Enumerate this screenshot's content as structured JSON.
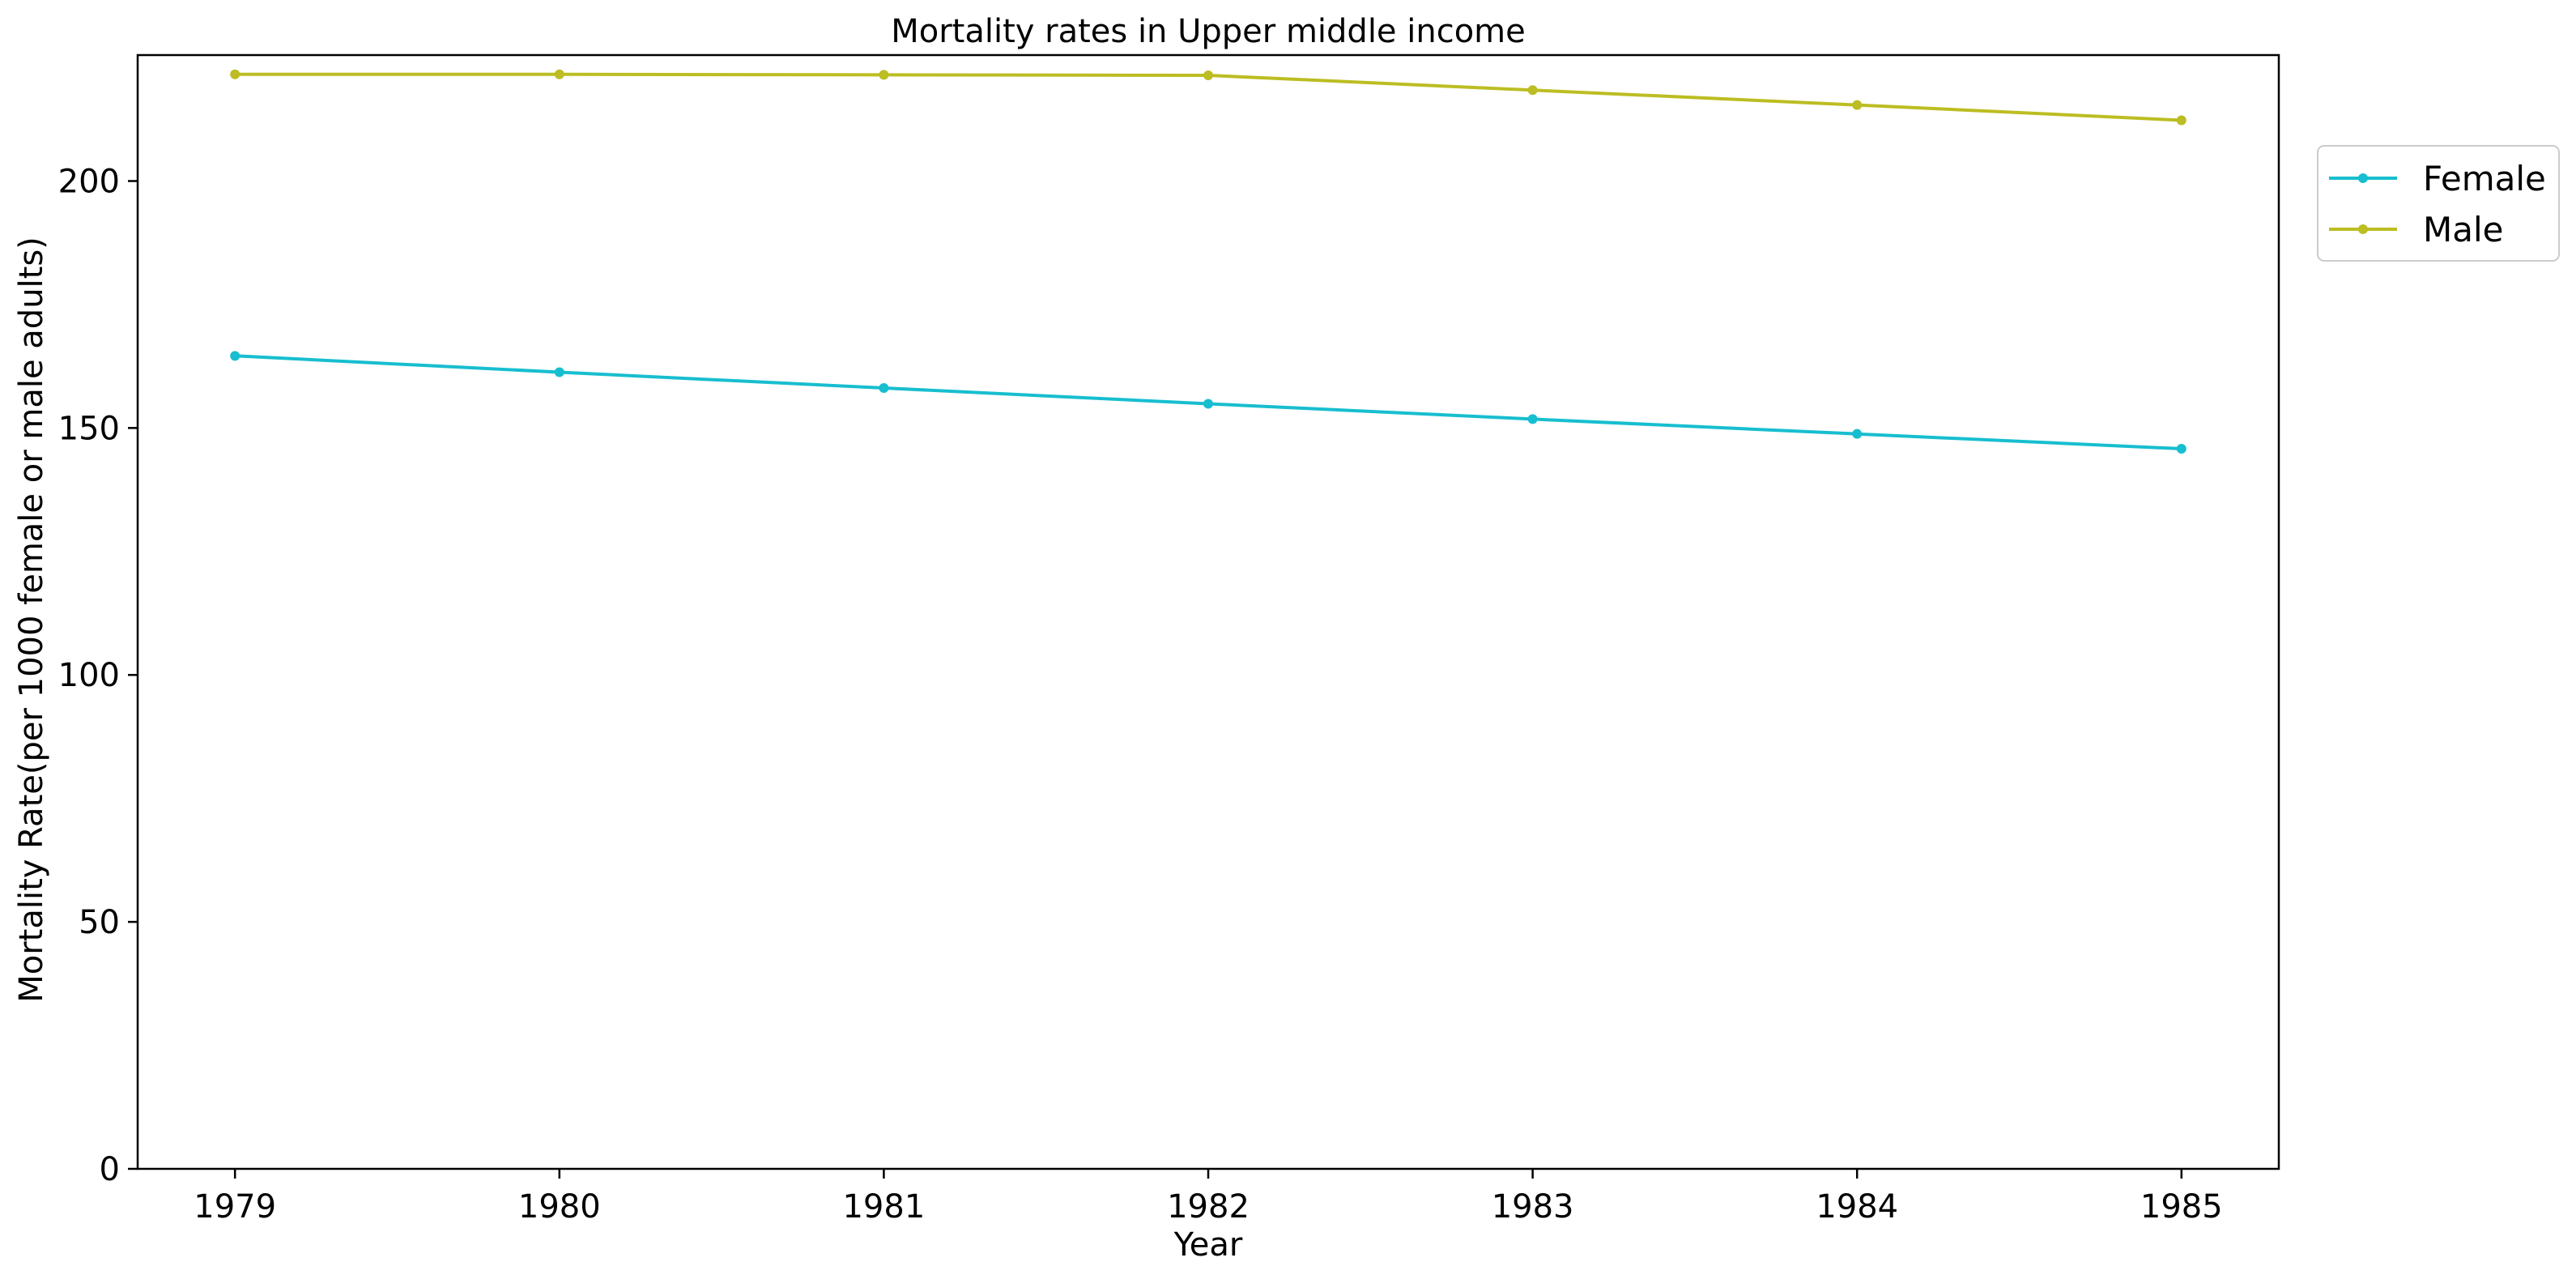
{
  "chart_data": {
    "type": "line",
    "title": "Mortality rates in Upper middle income",
    "xlabel": "Year",
    "ylabel": "Mortality Rate(per 1000 female or male adults)",
    "x": [
      1979,
      1980,
      1981,
      1982,
      1983,
      1984,
      1985
    ],
    "x_ticks": [
      "1979",
      "1980",
      "1981",
      "1982",
      "1983",
      "1984",
      "1985"
    ],
    "y_ticks": [
      0,
      50,
      100,
      150,
      200
    ],
    "ylim": [
      0,
      225.5
    ],
    "grid": false,
    "legend_position": "outside-top-right",
    "series": [
      {
        "name": "Female",
        "color": "#17becf",
        "marker": "circle",
        "values": [
          164.6,
          161.3,
          158.1,
          154.9,
          151.8,
          148.8,
          145.8
        ]
      },
      {
        "name": "Male",
        "color": "#bcbd22",
        "marker": "circle",
        "values": [
          221.6,
          221.6,
          221.5,
          221.4,
          218.4,
          215.4,
          212.3
        ]
      }
    ]
  }
}
